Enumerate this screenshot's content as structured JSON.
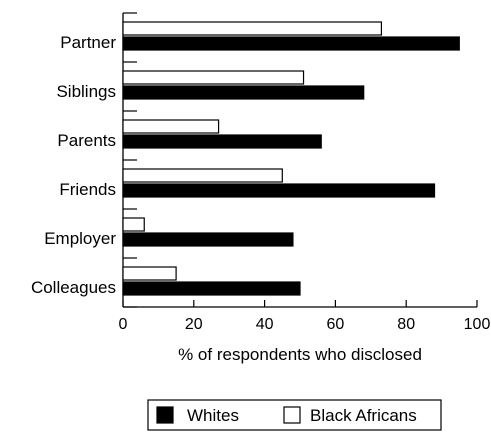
{
  "chart_data": {
    "type": "bar",
    "orientation": "horizontal",
    "categories": [
      "Partner",
      "Siblings",
      "Parents",
      "Friends",
      "Employer",
      "Colleagues"
    ],
    "series": [
      {
        "name": "Whites",
        "values": [
          95,
          68,
          56,
          88,
          48,
          50
        ],
        "color": "#000000"
      },
      {
        "name": "Black Africans",
        "values": [
          73,
          51,
          27,
          45,
          6,
          15
        ],
        "color": "#ffffff"
      }
    ],
    "xlabel": "% of respondents who disclosed",
    "ylabel": "",
    "xlim": [
      0,
      100
    ],
    "xticks": [
      0,
      20,
      40,
      60,
      80,
      100
    ],
    "grid": false,
    "legend_position": "bottom"
  }
}
